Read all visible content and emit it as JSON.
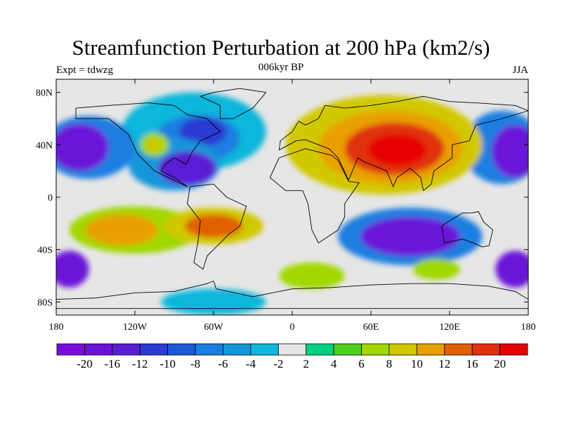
{
  "title": "Streamfunction Perturbation at 200 hPa (km2/s)",
  "left_label": "Expt = tdwzg",
  "center_label": "006kyr BP",
  "right_label": "JJA",
  "lat_ticks": [
    "80N",
    "40N",
    "0",
    "40S",
    "80S"
  ],
  "lon_ticks": [
    "180",
    "120W",
    "60W",
    "0",
    "60E",
    "120E",
    "180"
  ],
  "colorbar": {
    "colors": [
      "#7a0ddc",
      "#6a12d8",
      "#5a1ed4",
      "#2a3ad2",
      "#1a5ad8",
      "#1a7ee0",
      "#1696da",
      "#10b6dc",
      "#e6e6e6",
      "#00d080",
      "#50d020",
      "#a0d800",
      "#d2c800",
      "#e8a000",
      "#e06000",
      "#e03010",
      "#e60000"
    ],
    "labels": [
      "-20",
      "-16",
      "-12",
      "-10",
      "-8",
      "-6",
      "-4",
      "-2",
      "2",
      "4",
      "6",
      "8",
      "10",
      "12",
      "16",
      "20"
    ]
  },
  "field": {
    "background": "#e6e6e6",
    "blobs": [
      {
        "lon": -75,
        "lat": 50,
        "rx": 55,
        "ry": 30,
        "color": "#10b6dc"
      },
      {
        "lon": -72,
        "lat": 45,
        "rx": 32,
        "ry": 18,
        "color": "#1a7ee0"
      },
      {
        "lon": -68,
        "lat": 50,
        "rx": 18,
        "ry": 11,
        "color": "#2a3ad2"
      },
      {
        "lon": -90,
        "lat": 25,
        "rx": 35,
        "ry": 20,
        "color": "#1696da"
      },
      {
        "lon": -80,
        "lat": 22,
        "rx": 22,
        "ry": 13,
        "color": "#5a1ed4"
      },
      {
        "lon": -105,
        "lat": 40,
        "rx": 11,
        "ry": 9,
        "color": "#a0d800"
      },
      {
        "lon": -105,
        "lat": 40,
        "rx": 6,
        "ry": 5,
        "color": "#d2c800"
      },
      {
        "lon": -155,
        "lat": 38,
        "rx": 35,
        "ry": 24,
        "color": "#1a7ee0"
      },
      {
        "lon": -162,
        "lat": 38,
        "rx": 22,
        "ry": 18,
        "color": "#6a12d8"
      },
      {
        "lon": 160,
        "lat": 38,
        "rx": 30,
        "ry": 28,
        "color": "#1a7ee0"
      },
      {
        "lon": 170,
        "lat": 35,
        "rx": 18,
        "ry": 20,
        "color": "#6a12d8"
      },
      {
        "lon": 70,
        "lat": 40,
        "rx": 75,
        "ry": 38,
        "color": "#d2c800"
      },
      {
        "lon": 75,
        "lat": 38,
        "rx": 55,
        "ry": 28,
        "color": "#e8a000"
      },
      {
        "lon": 78,
        "lat": 37,
        "rx": 38,
        "ry": 20,
        "color": "#e03010"
      },
      {
        "lon": 80,
        "lat": 36,
        "rx": 22,
        "ry": 12,
        "color": "#e60000"
      },
      {
        "lon": -120,
        "lat": -25,
        "rx": 50,
        "ry": 18,
        "color": "#a0d800"
      },
      {
        "lon": -130,
        "lat": -25,
        "rx": 28,
        "ry": 12,
        "color": "#e8a000"
      },
      {
        "lon": -60,
        "lat": -22,
        "rx": 38,
        "ry": 14,
        "color": "#d2c800"
      },
      {
        "lon": -60,
        "lat": -22,
        "rx": 22,
        "ry": 9,
        "color": "#e06000"
      },
      {
        "lon": 90,
        "lat": -30,
        "rx": 55,
        "ry": 22,
        "color": "#1a7ee0"
      },
      {
        "lon": 90,
        "lat": -30,
        "rx": 38,
        "ry": 15,
        "color": "#6a12d8"
      },
      {
        "lon": 15,
        "lat": -60,
        "rx": 25,
        "ry": 10,
        "color": "#a0d800"
      },
      {
        "lon": 110,
        "lat": -55,
        "rx": 18,
        "ry": 8,
        "color": "#a0d800"
      },
      {
        "lon": -170,
        "lat": -55,
        "rx": 15,
        "ry": 14,
        "color": "#6a12d8"
      },
      {
        "lon": 170,
        "lat": -55,
        "rx": 15,
        "ry": 14,
        "color": "#6a12d8"
      },
      {
        "lon": -60,
        "lat": -80,
        "rx": 40,
        "ry": 10,
        "color": "#10b6dc"
      }
    ]
  },
  "coastlines": [
    {
      "name": "north-america",
      "points": [
        [
          -165,
          68
        ],
        [
          -140,
          70
        ],
        [
          -110,
          72
        ],
        [
          -90,
          70
        ],
        [
          -80,
          63
        ],
        [
          -65,
          60
        ],
        [
          -55,
          50
        ],
        [
          -70,
          43
        ],
        [
          -76,
          35
        ],
        [
          -81,
          25
        ],
        [
          -90,
          30
        ],
        [
          -97,
          25
        ],
        [
          -100,
          20
        ],
        [
          -90,
          15
        ],
        [
          -80,
          8
        ],
        [
          -105,
          20
        ],
        [
          -118,
          33
        ],
        [
          -125,
          48
        ],
        [
          -140,
          60
        ],
        [
          -165,
          60
        ],
        [
          -165,
          68
        ]
      ]
    },
    {
      "name": "greenland",
      "points": [
        [
          -55,
          60
        ],
        [
          -45,
          60
        ],
        [
          -30,
          68
        ],
        [
          -20,
          80
        ],
        [
          -40,
          83
        ],
        [
          -60,
          80
        ],
        [
          -70,
          77
        ],
        [
          -55,
          70
        ],
        [
          -55,
          60
        ]
      ]
    },
    {
      "name": "south-america",
      "points": [
        [
          -78,
          8
        ],
        [
          -60,
          10
        ],
        [
          -50,
          0
        ],
        [
          -35,
          -7
        ],
        [
          -40,
          -22
        ],
        [
          -48,
          -28
        ],
        [
          -58,
          -38
        ],
        [
          -65,
          -45
        ],
        [
          -68,
          -55
        ],
        [
          -75,
          -50
        ],
        [
          -72,
          -35
        ],
        [
          -70,
          -18
        ],
        [
          -80,
          -5
        ],
        [
          -78,
          8
        ]
      ]
    },
    {
      "name": "africa",
      "points": [
        [
          -17,
          15
        ],
        [
          -10,
          30
        ],
        [
          10,
          37
        ],
        [
          30,
          32
        ],
        [
          35,
          28
        ],
        [
          43,
          12
        ],
        [
          51,
          11
        ],
        [
          40,
          -5
        ],
        [
          40,
          -15
        ],
        [
          35,
          -25
        ],
        [
          20,
          -35
        ],
        [
          15,
          -25
        ],
        [
          12,
          -5
        ],
        [
          8,
          5
        ],
        [
          -5,
          5
        ],
        [
          -17,
          15
        ]
      ]
    },
    {
      "name": "eurasia",
      "points": [
        [
          -10,
          36
        ],
        [
          -9,
          43
        ],
        [
          0,
          50
        ],
        [
          5,
          58
        ],
        [
          10,
          55
        ],
        [
          20,
          60
        ],
        [
          25,
          70
        ],
        [
          40,
          68
        ],
        [
          60,
          70
        ],
        [
          80,
          73
        ],
        [
          100,
          77
        ],
        [
          120,
          73
        ],
        [
          140,
          72
        ],
        [
          170,
          70
        ],
        [
          180,
          66
        ],
        [
          160,
          60
        ],
        [
          140,
          55
        ],
        [
          135,
          43
        ],
        [
          122,
          40
        ],
        [
          122,
          30
        ],
        [
          108,
          20
        ],
        [
          106,
          10
        ],
        [
          100,
          5
        ],
        [
          98,
          15
        ],
        [
          90,
          22
        ],
        [
          80,
          15
        ],
        [
          77,
          8
        ],
        [
          72,
          20
        ],
        [
          60,
          25
        ],
        [
          55,
          27
        ],
        [
          50,
          30
        ],
        [
          43,
          13
        ],
        [
          35,
          30
        ],
        [
          28,
          37
        ],
        [
          20,
          40
        ],
        [
          10,
          44
        ],
        [
          3,
          43
        ],
        [
          -10,
          36
        ]
      ]
    },
    {
      "name": "australia",
      "points": [
        [
          114,
          -22
        ],
        [
          120,
          -18
        ],
        [
          130,
          -12
        ],
        [
          137,
          -12
        ],
        [
          142,
          -11
        ],
        [
          146,
          -19
        ],
        [
          153,
          -25
        ],
        [
          150,
          -37
        ],
        [
          145,
          -38
        ],
        [
          138,
          -35
        ],
        [
          130,
          -32
        ],
        [
          116,
          -35
        ],
        [
          114,
          -22
        ]
      ]
    },
    {
      "name": "antarctica",
      "points": [
        [
          -180,
          -85
        ],
        [
          -180,
          -78
        ],
        [
          -150,
          -77
        ],
        [
          -120,
          -73
        ],
        [
          -90,
          -72
        ],
        [
          -65,
          -66
        ],
        [
          -60,
          -64
        ],
        [
          -58,
          -70
        ],
        [
          -30,
          -76
        ],
        [
          0,
          -70
        ],
        [
          30,
          -69
        ],
        [
          60,
          -67
        ],
        [
          90,
          -66
        ],
        [
          120,
          -66
        ],
        [
          150,
          -68
        ],
        [
          170,
          -72
        ],
        [
          180,
          -78
        ],
        [
          180,
          -85
        ],
        [
          -180,
          -85
        ]
      ]
    }
  ]
}
